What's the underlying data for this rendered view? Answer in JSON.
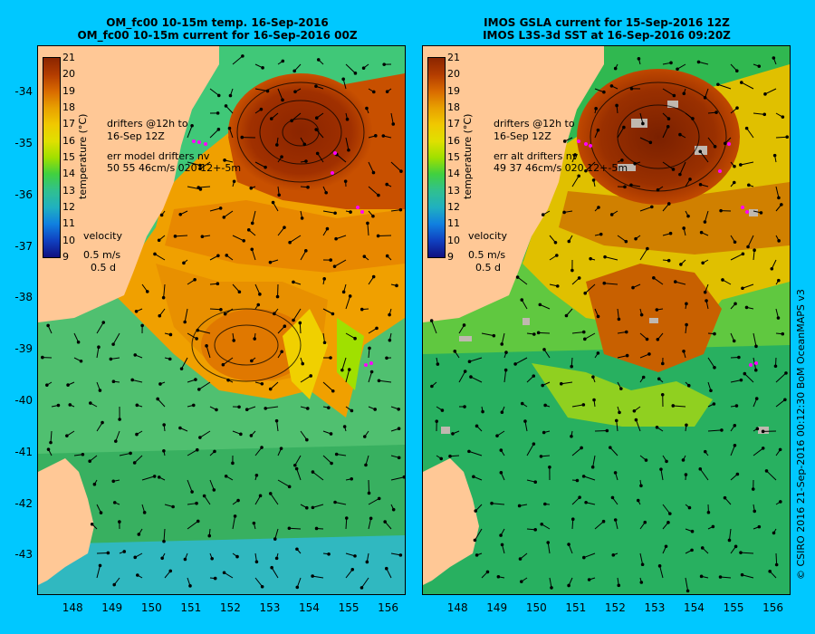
{
  "left_panel": {
    "title_line1": "OM_fc00 10-15m temp. 16-Sep-2016",
    "title_line2": "OM_fc00 10-15m current for 16-Sep-2016 00Z",
    "drifters_line1": "drifters @12h to",
    "drifters_line2": "16-Sep 12Z",
    "err_line1": "err model drifters nv",
    "err_line2": "50 55 46cm/s 020 12+-5m",
    "velocity_label": "velocity",
    "velocity_scale": "0.5 m/s",
    "velocity_time": "0.5 d"
  },
  "right_panel": {
    "title_line1": "IMOS GSLA current for 15-Sep-2016 12Z",
    "title_line2": "IMOS L3S-3d SST at 16-Sep-2016 09:20Z",
    "drifters_line1": "drifters @12h to",
    "drifters_line2": "16-Sep 12Z",
    "err_line1": "err alt drifters nv",
    "err_line2": "49 37 46cm/s 020 12+-5m",
    "velocity_label": "velocity",
    "velocity_scale": "0.5 m/s",
    "velocity_time": "0.5 d"
  },
  "colorbar": {
    "label": "temperature (°C)",
    "ticks": [
      "21",
      "20",
      "19",
      "18",
      "17",
      "16",
      "15",
      "14",
      "13",
      "12",
      "11",
      "10",
      "9"
    ],
    "colors": [
      "#8b2500",
      "#b33c00",
      "#d96a00",
      "#e8a000",
      "#f0c800",
      "#e0e000",
      "#a0e000",
      "#40d040",
      "#30c090",
      "#20b0c0",
      "#1080e0",
      "#1040c0",
      "#101080"
    ]
  },
  "axes": {
    "lat_ticks": [
      "-34",
      "-35",
      "-36",
      "-37",
      "-38",
      "-39",
      "-40",
      "-41",
      "-42",
      "-43"
    ],
    "lon_ticks": [
      "148",
      "149",
      "150",
      "151",
      "152",
      "153",
      "154",
      "155",
      "156"
    ],
    "lat_values": [
      -34,
      -35,
      -36,
      -37,
      -38,
      -39,
      -40,
      -41,
      -42,
      -43
    ],
    "lon_values": [
      148,
      149,
      150,
      151,
      152,
      153,
      154,
      155,
      156
    ],
    "lat_range": [
      -33.1,
      -43.75
    ],
    "lon_range": [
      147.1,
      156.4
    ]
  },
  "credit": "© CSIRO 2016  21-Sep-2016 00:12:30 BoM OceanMAPS v3"
}
